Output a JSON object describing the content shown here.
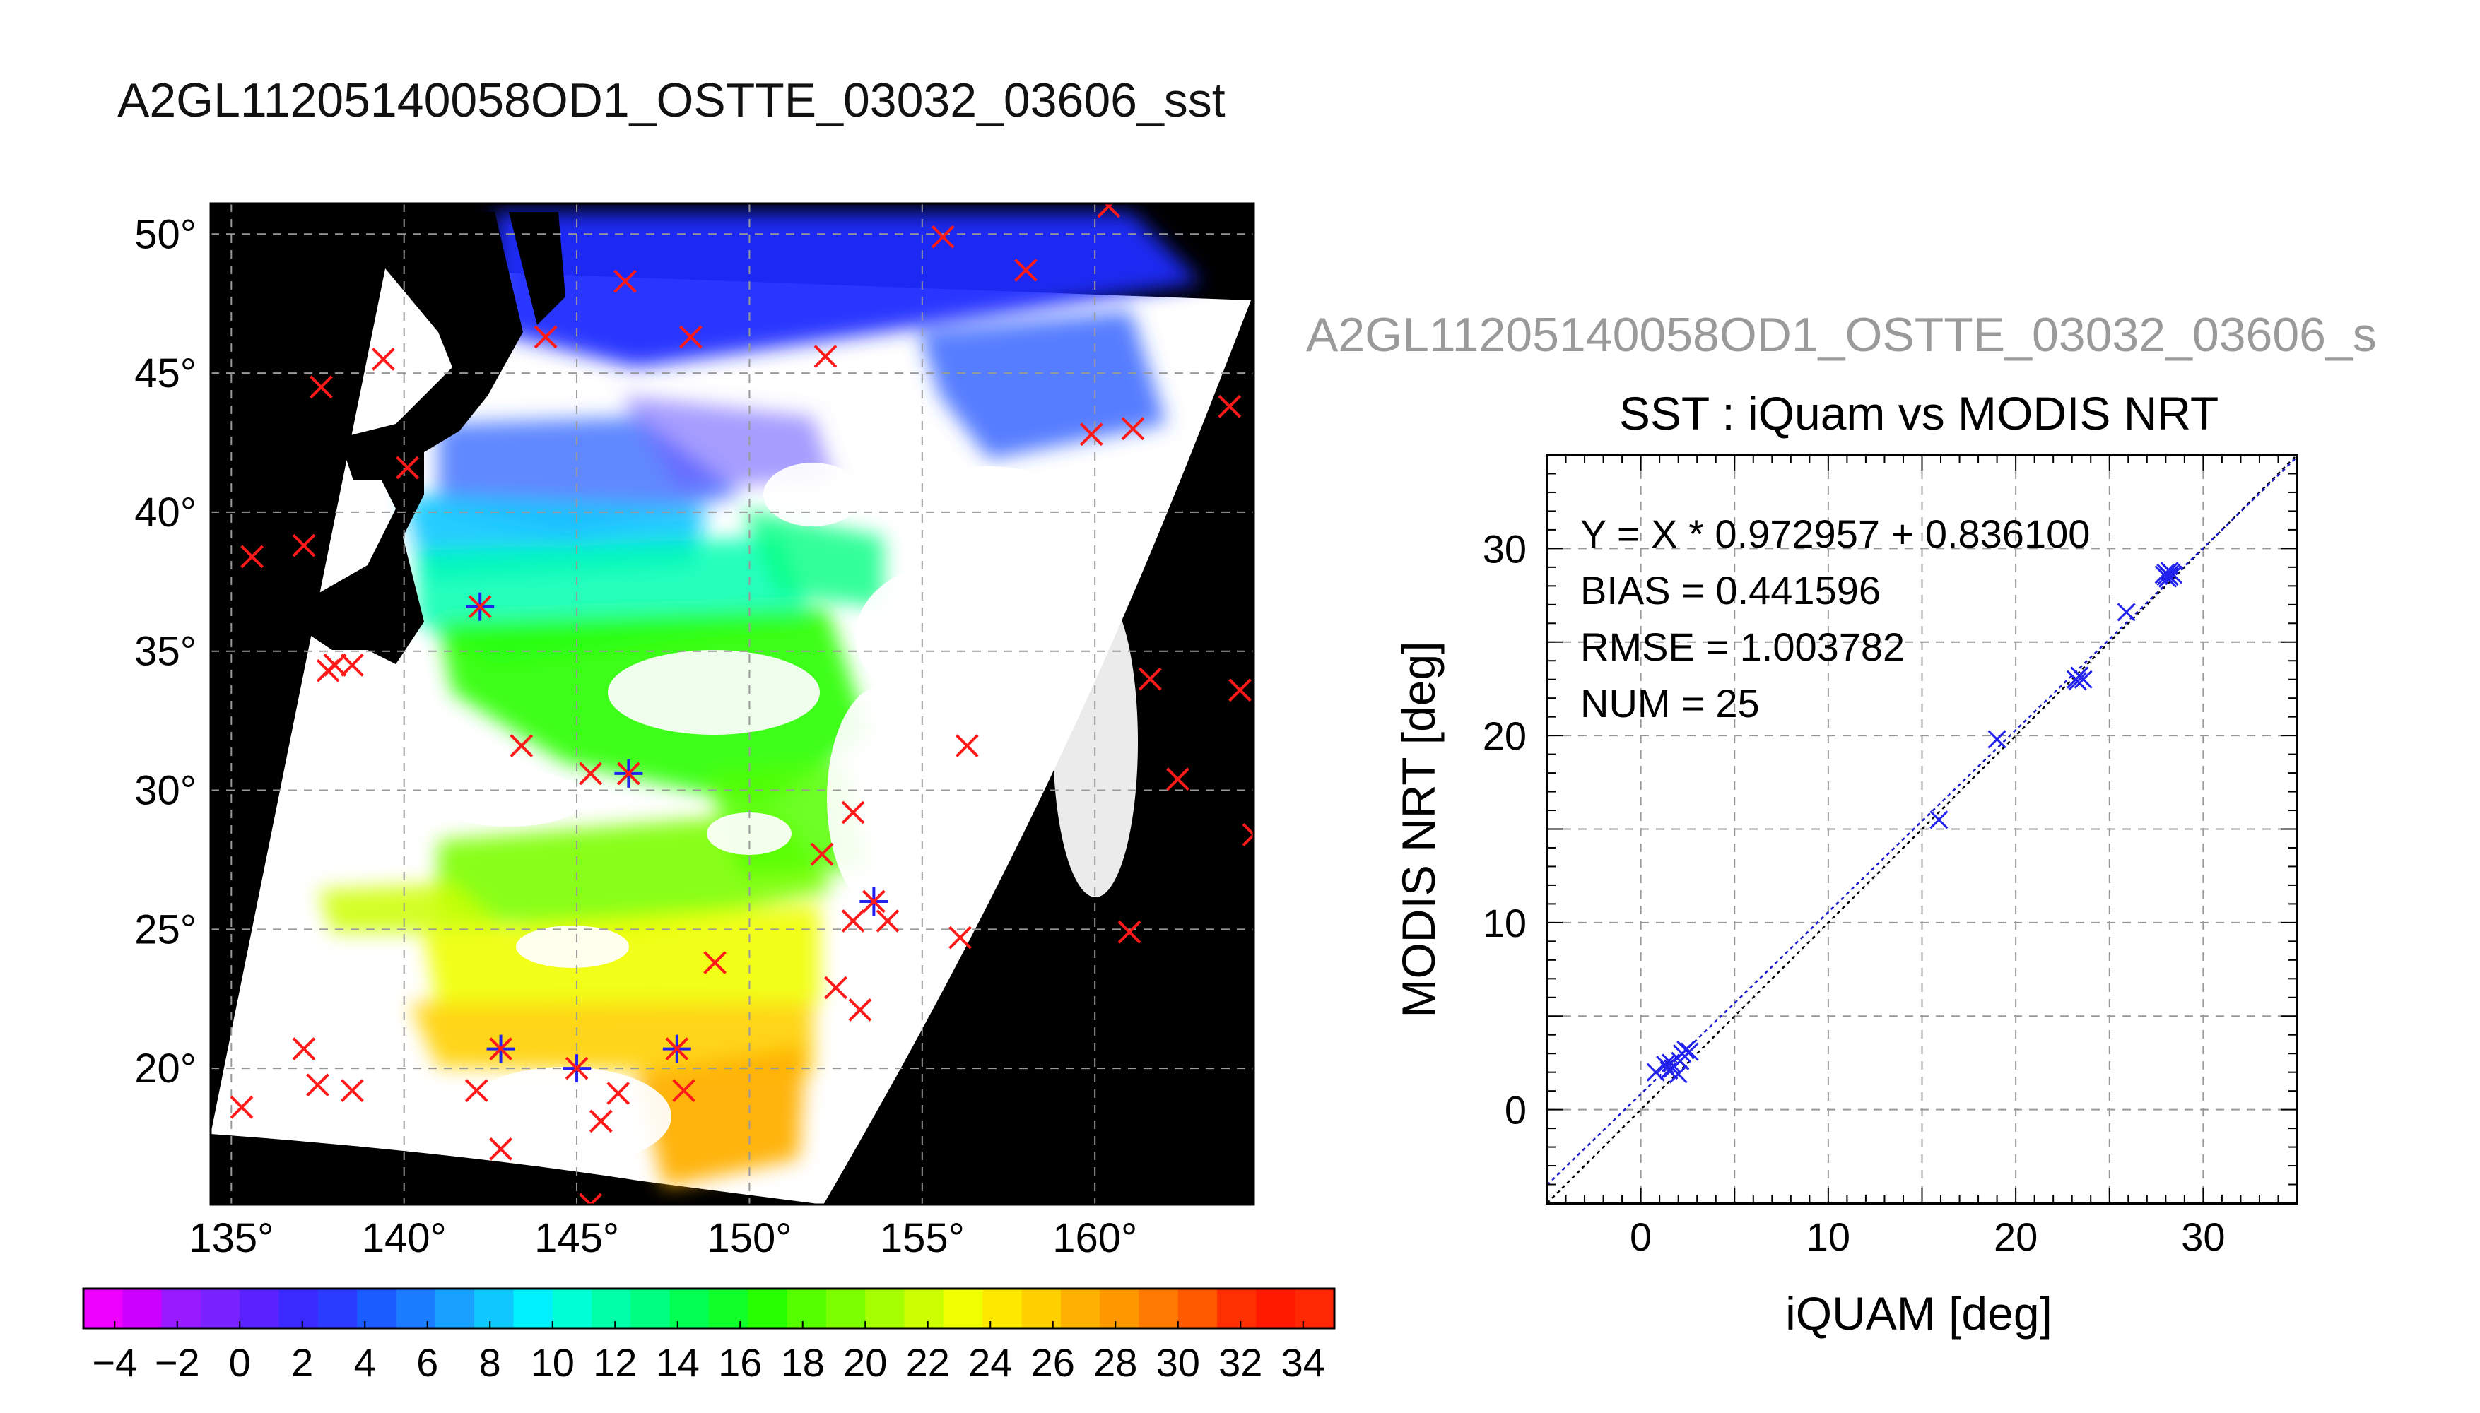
{
  "main_title": "A2GL11205140058OD1_OSTTE_03032_03606_sst",
  "colors": {
    "map_background": "#000000",
    "marker_red": "#ff1a1a",
    "marker_blue": "#2222ee",
    "grid": "#999999"
  },
  "chart_data": [
    {
      "type": "map",
      "x_ticks": [
        135,
        140,
        145,
        150,
        155,
        160
      ],
      "x_tick_labels": [
        "135°",
        "140°",
        "145°",
        "150°",
        "155°",
        "160°"
      ],
      "y_ticks": [
        20,
        25,
        30,
        35,
        40,
        45,
        50
      ],
      "y_tick_labels": [
        "20°",
        "25°",
        "30°",
        "35°",
        "40°",
        "45°",
        "50°"
      ],
      "xlim": [
        134.4,
        164.6
      ],
      "ylim": [
        15.1,
        51.1
      ],
      "grid": true,
      "colorbar": {
        "min": -5,
        "max": 35,
        "tick_values": [
          -4,
          -2,
          0,
          2,
          4,
          6,
          8,
          10,
          12,
          14,
          16,
          18,
          20,
          22,
          24,
          26,
          28,
          30,
          32,
          34
        ],
        "tick_labels": [
          "−4",
          "−2",
          "0",
          "2",
          "4",
          "6",
          "8",
          "10",
          "12",
          "14",
          "16",
          "18",
          "20",
          "22",
          "24",
          "26",
          "28",
          "30",
          "32",
          "34"
        ],
        "colors": [
          "#ee00ff",
          "#cc00ff",
          "#9a1aff",
          "#7a22ff",
          "#5a22ff",
          "#3a2aff",
          "#2a3cff",
          "#1a5cff",
          "#1a7cff",
          "#1aa0ff",
          "#10c8ff",
          "#00f0ff",
          "#00ffd6",
          "#00ffa8",
          "#00ff80",
          "#00ff50",
          "#10ff28",
          "#28ff00",
          "#54ff00",
          "#7cff00",
          "#a6ff00",
          "#ccff00",
          "#f0ff00",
          "#ffe800",
          "#ffd000",
          "#ffb000",
          "#ff9800",
          "#ff7a00",
          "#ff5a00",
          "#ff3000",
          "#ff1a00",
          "#ff2800"
        ]
      },
      "markers_red": [
        [
          143.4,
          31.6
        ],
        [
          145.4,
          30.6
        ],
        [
          137.1,
          38.8
        ],
        [
          135.6,
          38.4
        ],
        [
          137.6,
          44.5
        ],
        [
          139.4,
          45.5
        ],
        [
          140.1,
          41.6
        ],
        [
          144.1,
          46.3
        ],
        [
          146.4,
          48.3
        ],
        [
          148.3,
          46.3
        ],
        [
          152.2,
          45.6
        ],
        [
          155.6,
          49.9
        ],
        [
          158.0,
          48.7
        ],
        [
          160.4,
          51.0
        ],
        [
          159.9,
          42.8
        ],
        [
          161.1,
          43.0
        ],
        [
          163.9,
          43.8
        ],
        [
          161.6,
          34.0
        ],
        [
          164.2,
          33.6
        ],
        [
          162.4,
          30.4
        ],
        [
          164.6,
          28.4
        ],
        [
          152.1,
          27.7
        ],
        [
          153.0,
          29.2
        ],
        [
          156.3,
          31.6
        ],
        [
          152.5,
          22.9
        ],
        [
          153.2,
          22.1
        ],
        [
          154.0,
          25.3
        ],
        [
          156.1,
          24.7
        ],
        [
          161.0,
          24.9
        ],
        [
          149.0,
          23.8
        ],
        [
          153.0,
          25.3
        ],
        [
          148.1,
          19.2
        ],
        [
          146.2,
          19.1
        ],
        [
          145.7,
          18.1
        ],
        [
          145.4,
          15.1
        ],
        [
          142.8,
          17.1
        ],
        [
          142.1,
          19.2
        ],
        [
          138.5,
          19.2
        ],
        [
          137.5,
          19.4
        ],
        [
          137.1,
          20.7
        ],
        [
          135.3,
          18.6
        ],
        [
          138.0,
          34.5
        ],
        [
          138.5,
          34.5
        ],
        [
          137.8,
          34.3
        ]
      ],
      "markers_blue": [
        [
          142.2,
          36.6
        ],
        [
          146.5,
          30.6
        ],
        [
          153.6,
          26.0
        ],
        [
          142.8,
          20.7
        ],
        [
          147.9,
          20.7
        ],
        [
          145.0,
          20.0
        ]
      ]
    },
    {
      "type": "scatter",
      "title": "SST : iQuam vs MODIS NRT",
      "xlabel": "iQUAM [deg]",
      "ylabel": "MODIS NRT [deg]",
      "xlim": [
        -5,
        35
      ],
      "ylim": [
        -5,
        35
      ],
      "x_ticks": [
        0,
        10,
        20,
        30
      ],
      "y_ticks": [
        0,
        10,
        20,
        30
      ],
      "grid": true,
      "regression": {
        "slope": 0.972957,
        "intercept": 0.8361
      },
      "annotations": [
        "Y = X * 0.972957 + 0.836100",
        "BIAS = 0.441596",
        "RMSE = 1.003782",
        "NUM = 25"
      ],
      "points": [
        [
          0.8,
          2.0
        ],
        [
          1.3,
          2.4
        ],
        [
          1.5,
          2.1
        ],
        [
          1.7,
          2.2
        ],
        [
          2.0,
          1.9
        ],
        [
          2.2,
          3.0
        ],
        [
          2.4,
          3.2
        ],
        [
          2.6,
          3.1
        ],
        [
          2.1,
          2.6
        ],
        [
          1.6,
          2.5
        ],
        [
          15.9,
          15.5
        ],
        [
          19.0,
          19.8
        ],
        [
          23.2,
          23.0
        ],
        [
          23.4,
          23.2
        ],
        [
          23.6,
          23.0
        ],
        [
          23.3,
          22.9
        ],
        [
          25.9,
          26.6
        ],
        [
          28.0,
          28.5
        ],
        [
          28.2,
          28.8
        ],
        [
          28.4,
          28.6
        ],
        [
          28.1,
          28.4
        ],
        [
          27.9,
          28.6
        ],
        [
          28.3,
          28.7
        ],
        [
          28.0,
          28.7
        ],
        [
          28.2,
          28.5
        ]
      ]
    }
  ],
  "ghost_title": "A2GL11205140058OD1_OSTTE_03032_03606_s"
}
